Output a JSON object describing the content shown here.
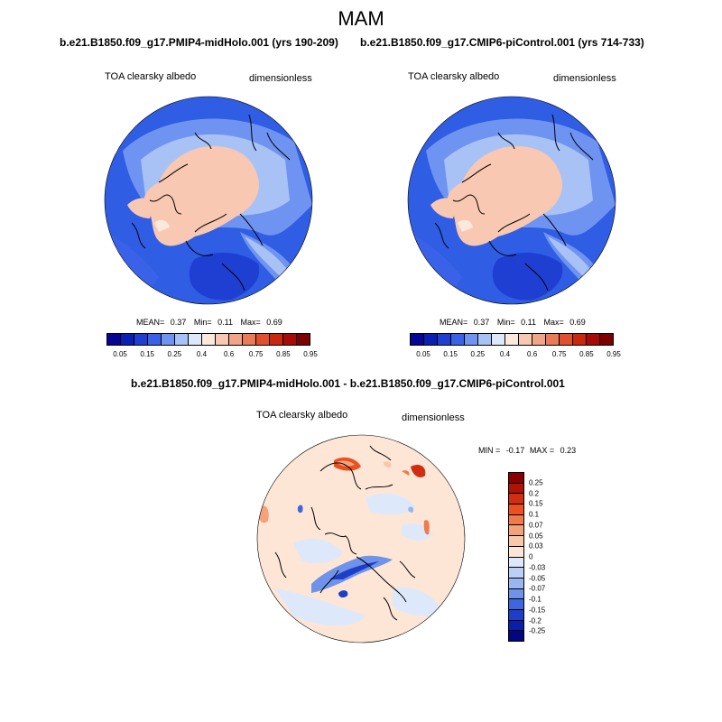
{
  "figure": {
    "title": "MAM",
    "panel_left": {
      "case": "b.e21.B1850.f09_g17.PMIP4-midHolo.001 (yrs 190-209)",
      "variable": "TOA clearsky albedo",
      "units": "dimensionless",
      "mean_label": "MEAN=",
      "mean": "0.37",
      "min_label": "Min=",
      "min": "0.11",
      "max_label": "Max=",
      "max": "0.69"
    },
    "panel_right": {
      "case": "b.e21.B1850.f09_g17.CMIP6-piControl.001 (yrs 714-733)",
      "variable": "TOA clearsky albedo",
      "units": "dimensionless",
      "mean_label": "MEAN=",
      "mean": "0.37",
      "min_label": "Min=",
      "min": "0.11",
      "max_label": "Max=",
      "max": "0.69"
    },
    "panel_diff": {
      "case": "b.e21.B1850.f09_g17.PMIP4-midHolo.001 - b.e21.B1850.f09_g17.CMIP6-piControl.001",
      "variable": "TOA clearsky albedo",
      "units": "dimensionless",
      "minmax_label_min": "MIN =",
      "min": "-0.17",
      "minmax_label_max": "MAX =",
      "max": "0.23"
    },
    "colorbar_abs": {
      "colors": [
        "#050596",
        "#0a1fb4",
        "#1f3ed2",
        "#3a62e8",
        "#6f93f0",
        "#a8c2f6",
        "#dde8fb",
        "#fde8dc",
        "#f8c8b2",
        "#f2a488",
        "#ea7a58",
        "#e0502e",
        "#c9280e",
        "#a80b05",
        "#7c0000"
      ],
      "tick_labels": [
        "0.05",
        "0.15",
        "0.25",
        "0.4",
        "0.6",
        "0.75",
        "0.85",
        "0.95"
      ]
    },
    "colorbar_diff": {
      "colors": [
        "#8a0000",
        "#b01206",
        "#d02e10",
        "#ea5022",
        "#f07a4c",
        "#f4a27a",
        "#f8c8ac",
        "#fde6d6",
        "#dde8fb",
        "#bcd0f6",
        "#9ab6f0",
        "#6f93ea",
        "#3f66de",
        "#1f3ec8",
        "#0a1fa8",
        "#020680"
      ],
      "tick_labels": [
        "0.25",
        "0.2",
        "0.15",
        "0.1",
        "0.07",
        "0.05",
        "0.03",
        "0",
        "-0.03",
        "-0.05",
        "-0.07",
        "-0.1",
        "-0.15",
        "-0.2",
        "-0.25"
      ]
    }
  }
}
